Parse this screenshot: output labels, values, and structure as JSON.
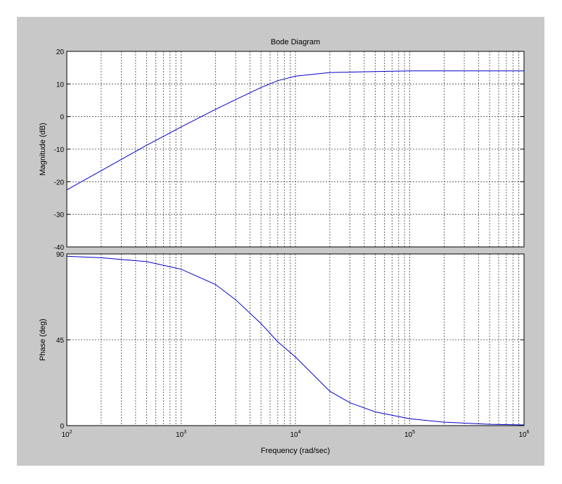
{
  "chart_data": {
    "type": "line",
    "title": "Bode Diagram",
    "xlabel": "Frequency  (rad/sec)",
    "x_scale": "log",
    "xlim": [
      100,
      1000000
    ],
    "x_tick_labels": [
      {
        "base": "10",
        "exp": "2",
        "value": 100
      },
      {
        "base": "10",
        "exp": "3",
        "value": 1000
      },
      {
        "base": "10",
        "exp": "4",
        "value": 10000
      },
      {
        "base": "10",
        "exp": "5",
        "value": 100000
      },
      {
        "base": "10",
        "exp": "6",
        "value": 1000000
      }
    ],
    "grid": true,
    "line_color": "#0000cc",
    "background_color": "#c8c8c8",
    "panels": [
      {
        "name": "magnitude",
        "ylabel": "Magnitude (dB)",
        "ylim": [
          -40,
          20
        ],
        "yticks": [
          20,
          10,
          0,
          -10,
          -20,
          -30,
          -40
        ],
        "ytick_labels": [
          "20",
          "10",
          "0",
          "-10",
          "-20",
          "-30",
          "-40"
        ],
        "series": [
          {
            "x": [
              100,
              200,
              500,
              1000,
              2000,
              3000,
              5000,
              7000,
              10000,
              20000,
              50000,
              100000,
              1000000
            ],
            "values": [
              -22.5,
              -16.6,
              -8.8,
              -3.2,
              2.2,
              5.2,
              8.9,
              11.0,
              12.4,
              13.5,
              13.8,
              14.0,
              14.0
            ]
          }
        ]
      },
      {
        "name": "phase",
        "ylabel": "Phase (deg)",
        "ylim": [
          0,
          90
        ],
        "yticks": [
          90,
          45,
          0
        ],
        "ytick_labels": [
          "90",
          "45",
          "0"
        ],
        "series": [
          {
            "x": [
              100,
              200,
              500,
              1000,
              2000,
              3000,
              5000,
              7000,
              10000,
              20000,
              30000,
              50000,
              100000,
              200000,
              500000,
              1000000
            ],
            "values": [
              88.8,
              88.0,
              86.0,
              82.0,
              74.0,
              66.0,
              53.5,
              44.0,
              36.0,
              18.0,
              12.0,
              7.2,
              3.6,
              1.8,
              0.7,
              0.35
            ]
          }
        ]
      }
    ]
  }
}
